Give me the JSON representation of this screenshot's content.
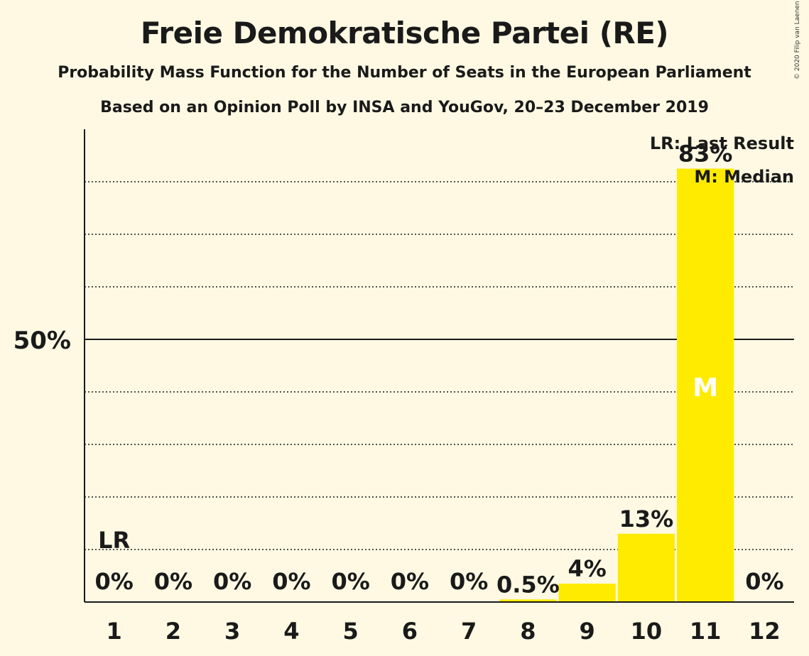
{
  "title": "Freie Demokratische Partei (RE)",
  "subtitle_1": "Probability Mass Function for the Number of Seats in the European Parliament",
  "subtitle_2": "Based on an Opinion Poll by INSA and YouGov, 20–23 December 2019",
  "copyright": "© 2020 Filip van Laenen",
  "legend": {
    "last_result": "LR: Last Result",
    "median": "M: Median"
  },
  "colors": {
    "bar": "#FFEB00",
    "background": "#FFF9E3",
    "text": "#1a1a1a"
  },
  "chart_data": {
    "type": "bar",
    "categories": [
      "1",
      "2",
      "3",
      "4",
      "5",
      "6",
      "7",
      "8",
      "9",
      "10",
      "11",
      "12"
    ],
    "values": [
      0,
      0,
      0,
      0,
      0,
      0,
      0,
      0.5,
      3.5,
      13,
      82.5,
      0
    ],
    "value_labels": [
      "0%",
      "0%",
      "0%",
      "0%",
      "0%",
      "0%",
      "0%",
      "0.5%",
      "4%",
      "13%",
      "83%",
      "0%"
    ],
    "ylim": [
      0,
      90
    ],
    "y_tick_label": "50%",
    "y_tick_value": 50,
    "grid_values": [
      10,
      20,
      30,
      40,
      60,
      70,
      80
    ],
    "last_result_category": "1",
    "last_result_label": "LR",
    "median_category": "11",
    "median_label": "M",
    "grid": true,
    "legend_position": "top-right"
  }
}
